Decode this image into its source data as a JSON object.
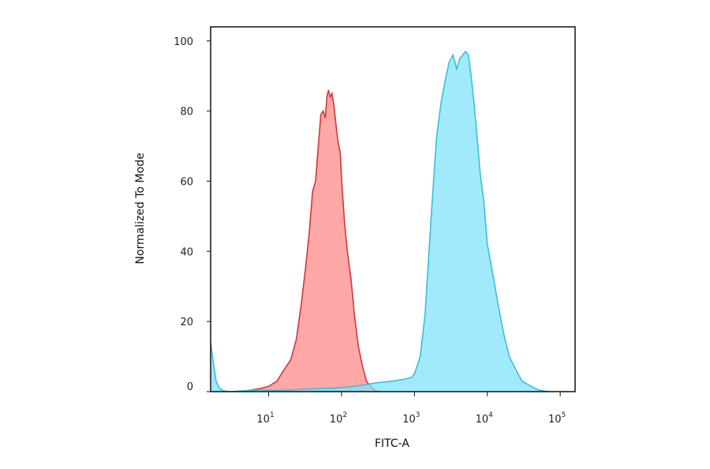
{
  "chart_data": {
    "type": "area",
    "title": "",
    "xlabel": "FITC-A",
    "ylabel": "Normalized To Mode",
    "x_scale": "log",
    "xlim": [
      1.6,
      160000
    ],
    "ylim": [
      0,
      104
    ],
    "grid": false,
    "legend": "none",
    "x_ticks": [
      {
        "value": 10,
        "base": "10",
        "exp": "1"
      },
      {
        "value": 100,
        "base": "10",
        "exp": "2"
      },
      {
        "value": 1000,
        "base": "10",
        "exp": "3"
      },
      {
        "value": 10000,
        "base": "10",
        "exp": "4"
      },
      {
        "value": 100000,
        "base": "10",
        "exp": "5"
      }
    ],
    "y_ticks": [
      {
        "value": 0,
        "label": "0"
      },
      {
        "value": 20,
        "label": "20"
      },
      {
        "value": 40,
        "label": "40"
      },
      {
        "value": 60,
        "label": "60"
      },
      {
        "value": 80,
        "label": "80"
      },
      {
        "value": 100,
        "label": "100"
      }
    ],
    "series": [
      {
        "color_fill": "#ff9e9e",
        "color_line": "#d93535",
        "x": [
          4,
          6,
          8,
          10,
          13,
          16,
          20,
          24,
          28,
          32,
          36,
          40,
          44,
          48,
          52,
          56,
          60,
          63,
          66,
          70,
          74,
          78,
          82,
          86,
          90,
          96,
          102,
          110,
          120,
          135,
          150,
          170,
          195,
          220,
          250,
          280,
          320
        ],
        "y": [
          0,
          0.5,
          1,
          1.5,
          3,
          6,
          9,
          15,
          25,
          35,
          45,
          57,
          60,
          70,
          79,
          80,
          78,
          84,
          86,
          84,
          85,
          82,
          78,
          74,
          71,
          68,
          58,
          48,
          40,
          32,
          22,
          13,
          7,
          3,
          1.5,
          0.5,
          0
        ]
      },
      {
        "color_fill": "#80e3fa",
        "color_line": "#36bfe0",
        "x": [
          1.6,
          1.75,
          1.9,
          2.1,
          2.4,
          3,
          5,
          8,
          12,
          20,
          40,
          80,
          150,
          300,
          500,
          700,
          900,
          1000,
          1200,
          1400,
          1700,
          2000,
          2300,
          2600,
          3000,
          3400,
          3800,
          4200,
          4600,
          5000,
          5500,
          6000,
          6500,
          7000,
          8000,
          9000,
          10000,
          12000,
          14000,
          17000,
          20000,
          25000,
          30000,
          40000,
          50000,
          60000,
          70000
        ],
        "y": [
          14,
          8,
          3,
          1,
          0.2,
          0,
          0.3,
          0.5,
          0.3,
          0.5,
          0.8,
          1,
          1.5,
          2.5,
          3,
          3.5,
          4,
          5,
          10,
          22,
          50,
          72,
          82,
          88,
          94,
          96,
          92,
          95,
          96,
          97,
          96,
          90,
          83,
          76,
          62,
          54,
          42,
          33,
          25,
          16,
          10,
          6,
          3,
          1.5,
          0.5,
          0.2,
          0
        ]
      }
    ]
  }
}
